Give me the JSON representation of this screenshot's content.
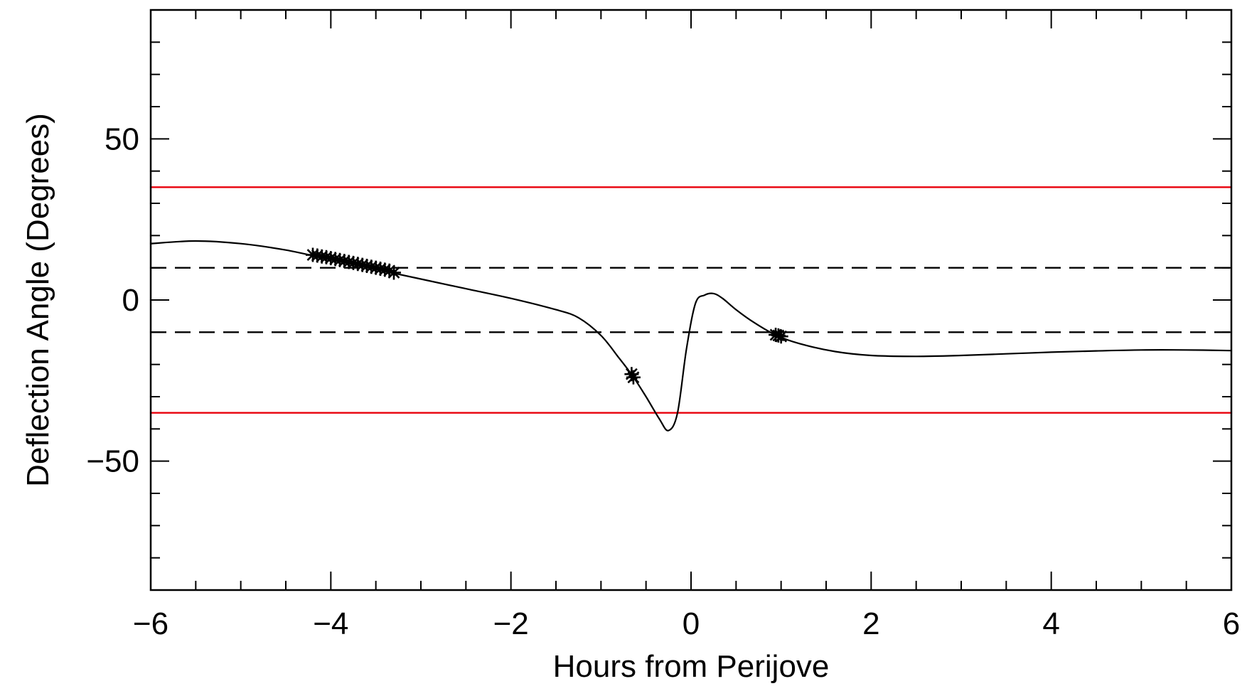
{
  "chart_data": {
    "type": "line",
    "title": "",
    "xlabel": "Hours from Perijove",
    "ylabel": "Deflection Angle (Degrees)",
    "xlim": [
      -6,
      6
    ],
    "ylim": [
      -90,
      90
    ],
    "x_ticks": [
      -6,
      -4,
      -2,
      0,
      2,
      4,
      6
    ],
    "y_ticks": [
      -50,
      0,
      50
    ],
    "x_minor_step": 0.5,
    "y_minor_step": 10,
    "grid": false,
    "x_tick_labels": [
      "−6",
      "−4",
      "−2",
      "0",
      "2",
      "4",
      "6"
    ],
    "y_tick_labels": [
      "−50",
      "0",
      "50"
    ],
    "curve": {
      "color": "#000000",
      "x": [
        -6.0,
        -5.5,
        -5.0,
        -4.5,
        -4.0,
        -3.5,
        -3.0,
        -2.5,
        -2.0,
        -1.5,
        -1.25,
        -1.0,
        -0.8,
        -0.65,
        -0.5,
        -0.35,
        -0.25,
        -0.15,
        -0.05,
        0.05,
        0.15,
        0.25,
        0.35,
        0.5,
        0.7,
        0.95,
        1.2,
        1.6,
        2.0,
        2.5,
        3.0,
        3.5,
        4.0,
        4.5,
        5.0,
        5.5,
        6.0
      ],
      "y": [
        17.5,
        18.3,
        17.5,
        15.5,
        12.5,
        9.5,
        6.5,
        3.5,
        0.5,
        -3.0,
        -5.5,
        -11.0,
        -18.0,
        -23.5,
        -30.0,
        -37.0,
        -40.5,
        -35.0,
        -15.0,
        -1.0,
        1.5,
        2.0,
        0.5,
        -3.0,
        -7.0,
        -11.0,
        -13.5,
        -16.0,
        -17.2,
        -17.5,
        -17.2,
        -16.7,
        -16.2,
        -15.8,
        -15.5,
        -15.5,
        -15.7
      ]
    },
    "reference_lines": [
      {
        "y": 35,
        "style": "solid",
        "color": "#e8000b"
      },
      {
        "y": -35,
        "style": "solid",
        "color": "#e8000b"
      },
      {
        "y": 10,
        "style": "dashed",
        "color": "#000000"
      },
      {
        "y": -10,
        "style": "dashed",
        "color": "#000000"
      }
    ],
    "markers": {
      "symbol": "asterisk",
      "color": "#000000",
      "points": [
        {
          "x": -4.2,
          "y": 14.0
        },
        {
          "x": -4.15,
          "y": 13.8
        },
        {
          "x": -4.1,
          "y": 13.5
        },
        {
          "x": -4.05,
          "y": 13.3
        },
        {
          "x": -4.0,
          "y": 13.0
        },
        {
          "x": -3.95,
          "y": 12.7
        },
        {
          "x": -3.9,
          "y": 12.4
        },
        {
          "x": -3.85,
          "y": 12.1
        },
        {
          "x": -3.8,
          "y": 11.8
        },
        {
          "x": -3.75,
          "y": 11.5
        },
        {
          "x": -3.7,
          "y": 11.2
        },
        {
          "x": -3.65,
          "y": 10.9
        },
        {
          "x": -3.6,
          "y": 10.6
        },
        {
          "x": -3.55,
          "y": 10.3
        },
        {
          "x": -3.5,
          "y": 10.0
        },
        {
          "x": -3.45,
          "y": 9.7
        },
        {
          "x": -3.4,
          "y": 9.4
        },
        {
          "x": -3.35,
          "y": 9.1
        },
        {
          "x": -3.3,
          "y": 8.5
        },
        {
          "x": -0.66,
          "y": -23.0
        },
        {
          "x": -0.64,
          "y": -24.0
        },
        {
          "x": 0.94,
          "y": -10.8
        },
        {
          "x": 0.97,
          "y": -11.0
        },
        {
          "x": 1.0,
          "y": -11.3
        }
      ]
    }
  }
}
